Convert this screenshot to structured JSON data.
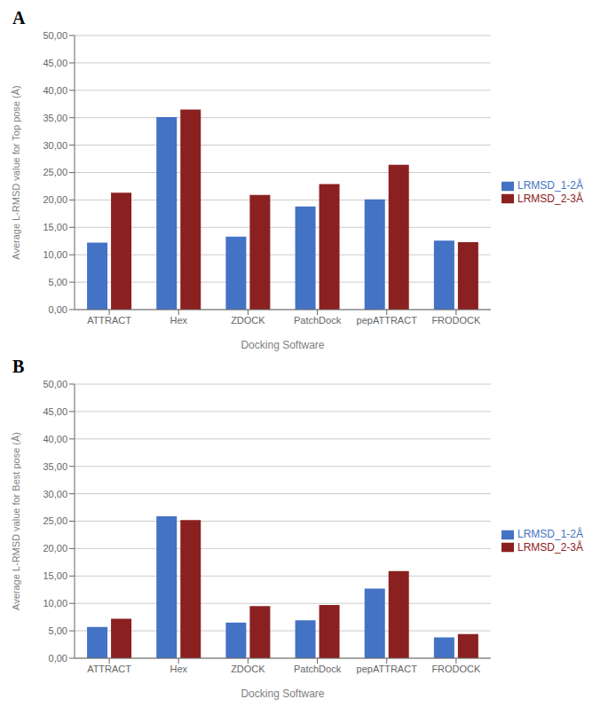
{
  "chart_data": [
    {
      "type": "bar",
      "title": "A",
      "categories": [
        "ATTRACT",
        "Hex",
        "ZDOCK",
        "PatchDock",
        "pepATTRACT",
        "FRODOCK"
      ],
      "series": [
        {
          "name": "LRMSD_1-2Å",
          "color": "#4472C4",
          "values": [
            12.2,
            35.1,
            13.3,
            18.8,
            20.1,
            12.6
          ]
        },
        {
          "name": "LRMSD_2-3Å",
          "color": "#8B2020",
          "values": [
            21.3,
            36.5,
            20.9,
            22.9,
            26.4,
            12.3
          ]
        }
      ],
      "xlabel": "Docking Software",
      "ylabel": "Average L-RMSD value for Top pose (Å)",
      "ylim": [
        0,
        50
      ],
      "yticks": [
        {
          "value": 0,
          "label": "0,00"
        },
        {
          "value": 5,
          "label": "5,00"
        },
        {
          "value": 10,
          "label": "10,00"
        },
        {
          "value": 15,
          "label": "15,00"
        },
        {
          "value": 20,
          "label": "20,00"
        },
        {
          "value": 25,
          "label": "25,00"
        },
        {
          "value": 30,
          "label": "30,00"
        },
        {
          "value": 35,
          "label": "35,00"
        },
        {
          "value": 40,
          "label": "40,00"
        },
        {
          "value": 45,
          "label": "45,00"
        },
        {
          "value": 50,
          "label": "50,00"
        }
      ],
      "grid": true,
      "legend": "right"
    },
    {
      "type": "bar",
      "title": "B",
      "categories": [
        "ATTRACT",
        "Hex",
        "ZDOCK",
        "PatchDock",
        "pepATTRACT",
        "FRODOCK"
      ],
      "series": [
        {
          "name": "LRMSD_1-2Å",
          "color": "#4472C4",
          "values": [
            5.7,
            25.9,
            6.5,
            6.9,
            12.7,
            3.8
          ]
        },
        {
          "name": "LRMSD_2-3Å",
          "color": "#8B2020",
          "values": [
            7.2,
            25.2,
            9.5,
            9.7,
            15.9,
            4.4
          ]
        }
      ],
      "xlabel": "Docking Software",
      "ylabel": "Average L-RMSD value for Best pose (Å)",
      "ylim": [
        0,
        50
      ],
      "yticks": [
        {
          "value": 0,
          "label": "0,00"
        },
        {
          "value": 5,
          "label": "5,00"
        },
        {
          "value": 10,
          "label": "10,00"
        },
        {
          "value": 15,
          "label": "15,00"
        },
        {
          "value": 20,
          "label": "20,00"
        },
        {
          "value": 25,
          "label": "25,00"
        },
        {
          "value": 30,
          "label": "30,00"
        },
        {
          "value": 35,
          "label": "35,00"
        },
        {
          "value": 40,
          "label": "40,00"
        },
        {
          "value": 45,
          "label": "45,00"
        },
        {
          "value": 50,
          "label": "50,00"
        }
      ],
      "grid": true,
      "legend": "right"
    }
  ]
}
